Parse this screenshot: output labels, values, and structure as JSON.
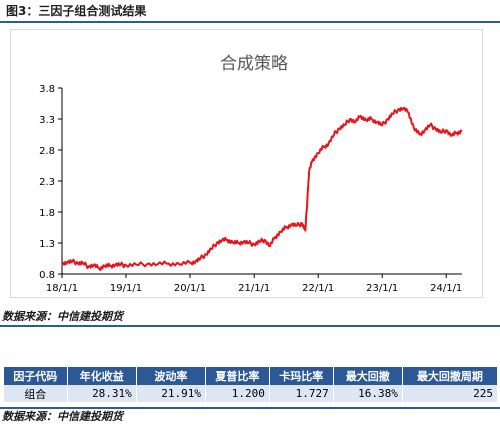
{
  "figure": {
    "title": "图3：三因子组合测试结果"
  },
  "source_note": "数据来源：中信建投期货",
  "chart_data": {
    "type": "line",
    "title": "合成策略",
    "ylim": [
      0.8,
      3.8
    ],
    "yticks": [
      "0.8",
      "1.3",
      "1.8",
      "2.3",
      "2.8",
      "3.3",
      "3.8"
    ],
    "ytick_values": [
      0.8,
      1.3,
      1.8,
      2.3,
      2.8,
      3.3,
      3.8
    ],
    "xticks": [
      "18/1/1",
      "19/1/1",
      "20/1/1",
      "21/1/1",
      "22/1/1",
      "23/1/1",
      "24/1/1"
    ],
    "xtick_values": [
      "2018-01-01",
      "2019-01-01",
      "2020-01-01",
      "2021-01-01",
      "2022-01-01",
      "2023-01-01",
      "2024-01-01"
    ],
    "x_range": [
      "2018-01-01",
      "2024-03-31"
    ],
    "grid": false,
    "legend": "none",
    "series": [
      {
        "color": "#e8141c",
        "points": [
          [
            "2018-01-01",
            0.98
          ],
          [
            "2018-02-01",
            0.99
          ],
          [
            "2018-03-01",
            1.0
          ],
          [
            "2018-04-01",
            0.98
          ],
          [
            "2018-05-01",
            0.97
          ],
          [
            "2018-06-01",
            0.92
          ],
          [
            "2018-07-01",
            0.94
          ],
          [
            "2018-08-01",
            0.89
          ],
          [
            "2018-09-01",
            0.93
          ],
          [
            "2018-10-01",
            0.93
          ],
          [
            "2018-11-01",
            0.95
          ],
          [
            "2018-12-01",
            0.95
          ],
          [
            "2019-01-01",
            0.94
          ],
          [
            "2019-03-01",
            0.95
          ],
          [
            "2019-05-01",
            0.96
          ],
          [
            "2019-07-01",
            0.96
          ],
          [
            "2019-09-01",
            0.97
          ],
          [
            "2019-11-01",
            0.96
          ],
          [
            "2020-01-01",
            0.98
          ],
          [
            "2020-02-01",
            1.0
          ],
          [
            "2020-03-01",
            1.05
          ],
          [
            "2020-04-01",
            1.12
          ],
          [
            "2020-05-01",
            1.2
          ],
          [
            "2020-06-01",
            1.3
          ],
          [
            "2020-07-01",
            1.34
          ],
          [
            "2020-08-01",
            1.35
          ],
          [
            "2020-09-01",
            1.31
          ],
          [
            "2020-10-01",
            1.3
          ],
          [
            "2020-11-01",
            1.32
          ],
          [
            "2020-12-01",
            1.3
          ],
          [
            "2021-01-01",
            1.28
          ],
          [
            "2021-02-01",
            1.32
          ],
          [
            "2021-03-01",
            1.35
          ],
          [
            "2021-04-01",
            1.25
          ],
          [
            "2021-05-01",
            1.4
          ],
          [
            "2021-06-01",
            1.48
          ],
          [
            "2021-07-01",
            1.55
          ],
          [
            "2021-08-01",
            1.6
          ],
          [
            "2021-09-01",
            1.58
          ],
          [
            "2021-10-01",
            1.62
          ],
          [
            "2021-10-20",
            1.5
          ],
          [
            "2021-11-01",
            2.05
          ],
          [
            "2021-11-10",
            2.45
          ],
          [
            "2021-12-01",
            2.65
          ],
          [
            "2022-01-01",
            2.75
          ],
          [
            "2022-02-01",
            2.85
          ],
          [
            "2022-03-01",
            2.9
          ],
          [
            "2022-04-01",
            3.05
          ],
          [
            "2022-05-01",
            3.15
          ],
          [
            "2022-06-01",
            3.2
          ],
          [
            "2022-07-01",
            3.3
          ],
          [
            "2022-08-01",
            3.25
          ],
          [
            "2022-09-01",
            3.35
          ],
          [
            "2022-10-01",
            3.28
          ],
          [
            "2022-11-01",
            3.3
          ],
          [
            "2022-12-01",
            3.25
          ],
          [
            "2023-01-01",
            3.2
          ],
          [
            "2023-02-01",
            3.3
          ],
          [
            "2023-03-01",
            3.38
          ],
          [
            "2023-04-01",
            3.45
          ],
          [
            "2023-05-01",
            3.47
          ],
          [
            "2023-06-01",
            3.4
          ],
          [
            "2023-07-01",
            3.15
          ],
          [
            "2023-08-01",
            3.05
          ],
          [
            "2023-09-01",
            3.12
          ],
          [
            "2023-10-01",
            3.2
          ],
          [
            "2023-11-01",
            3.15
          ],
          [
            "2023-12-01",
            3.08
          ],
          [
            "2024-01-01",
            3.12
          ],
          [
            "2024-02-01",
            3.03
          ],
          [
            "2024-03-01",
            3.08
          ],
          [
            "2024-03-31",
            3.1
          ]
        ]
      }
    ]
  },
  "table": {
    "headers": [
      "因子代码",
      "年化收益",
      "波动率",
      "夏普比率",
      "卡玛比率",
      "最大回撤",
      "最大回撤周期"
    ],
    "rows": [
      [
        "组合",
        "28.31%",
        "21.91%",
        "1.200",
        "1.727",
        "16.38%",
        "225"
      ]
    ]
  }
}
